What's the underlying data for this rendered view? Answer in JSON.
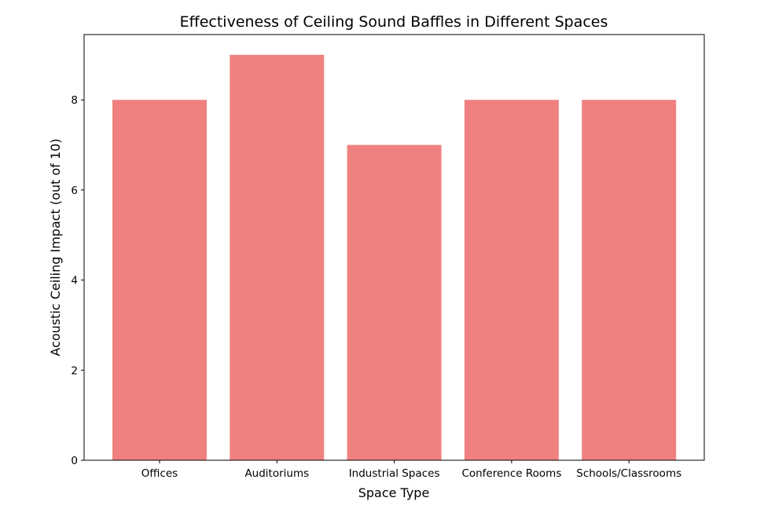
{
  "chart_data": {
    "type": "bar",
    "title": "Effectiveness of Ceiling Sound Baffles in Different Spaces",
    "xlabel": "Space Type",
    "ylabel": "Acoustic Ceiling Impact (out of 10)",
    "categories": [
      "Offices",
      "Auditoriums",
      "Industrial Spaces",
      "Conference Rooms",
      "Schools/Classrooms"
    ],
    "values": [
      8,
      9,
      7,
      8,
      8
    ],
    "ylim": [
      0,
      9.45
    ],
    "yticks": [
      0,
      2,
      4,
      6,
      8
    ],
    "grid": false,
    "bar_color": "#F08080"
  }
}
